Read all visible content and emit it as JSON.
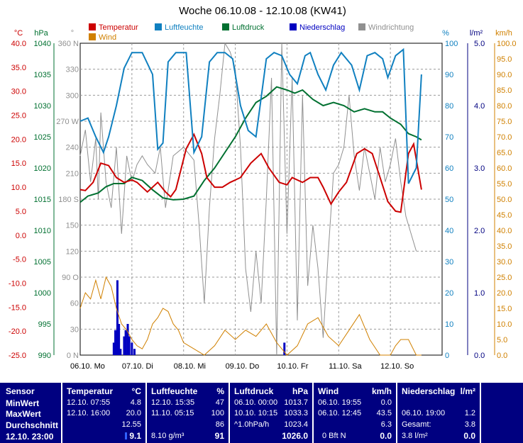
{
  "title": "Woche 06.10.08 - 12.10.08 (KW41)",
  "colors": {
    "temperature": "#cc0000",
    "humidity": "#1080c0",
    "pressure": "#007030",
    "rain": "#0000c0",
    "wind_dir": "#909090",
    "wind": "#d08000",
    "stats_bg": "#000080"
  },
  "legend": [
    {
      "label": "Temperatur",
      "color": "#cc0000"
    },
    {
      "label": "Luftfeuchte",
      "color": "#1080c0"
    },
    {
      "label": "Luftdruck",
      "color": "#007030"
    },
    {
      "label": "Niederschlag",
      "color": "#0000c0"
    },
    {
      "label": "Windrichtung",
      "color": "#909090"
    },
    {
      "label": "Wind",
      "color": "#d08000"
    }
  ],
  "axes": {
    "temp": {
      "unit": "°C",
      "min": -25,
      "max": 40,
      "ticks": [
        "40.0",
        "35.0",
        "30.0",
        "25.0",
        "20.0",
        "15.0",
        "10.0",
        "5.0",
        "0.0",
        "-5.0",
        "-10.0",
        "-15.0",
        "-20.0",
        "-25.0"
      ]
    },
    "pressure": {
      "unit": "hPa",
      "min": 990,
      "max": 1040,
      "ticks": [
        "1040",
        "1035",
        "1030",
        "1025",
        "1020",
        "1015",
        "1010",
        "1005",
        "1000",
        "995",
        "990"
      ]
    },
    "direction": {
      "unit": "°",
      "min": 0,
      "max": 360,
      "ticks": [
        "360 N",
        "330",
        "300",
        "270 W",
        "240",
        "210",
        "180 S",
        "150",
        "120",
        "90 O",
        "60",
        "30",
        "0 N"
      ]
    },
    "humidity": {
      "unit": "%",
      "min": 0,
      "max": 100,
      "ticks": [
        "100",
        "90",
        "80",
        "70",
        "60",
        "50",
        "40",
        "30",
        "20",
        "10",
        "0"
      ]
    },
    "rain": {
      "unit": "l/m²",
      "min": 0,
      "max": 5,
      "ticks": [
        "5.0",
        "4.0",
        "3.0",
        "2.0",
        "1.0",
        "0.0"
      ]
    },
    "wind": {
      "unit": "km/h",
      "min": 0,
      "max": 100,
      "ticks": [
        "100.0",
        "95.0",
        "90.0",
        "85.0",
        "80.0",
        "75.0",
        "70.0",
        "65.0",
        "60.0",
        "55.0",
        "50.0",
        "45.0",
        "40.0",
        "35.0",
        "30.0",
        "25.0",
        "20.0",
        "15.0",
        "10.0",
        "5.0",
        "0.0"
      ]
    }
  },
  "chart_data": {
    "type": "line",
    "title": "Woche 06.10.08 - 12.10.08 (KW41)",
    "categories": [
      "06.10. Mo",
      "07.10. Di",
      "08.10. Mi",
      "09.10. Do",
      "10.10. Fr",
      "11.10. Sa",
      "12.10. So"
    ],
    "grid": true,
    "legend_position": "top",
    "series": [
      {
        "name": "Temperatur",
        "axis": "temp",
        "color": "#cc0000",
        "x": [
          0,
          0.1,
          0.25,
          0.4,
          0.55,
          0.7,
          0.85,
          1.0,
          1.1,
          1.3,
          1.5,
          1.65,
          1.75,
          1.85,
          2.05,
          2.2,
          2.35,
          2.45,
          2.6,
          2.75,
          2.9,
          3.1,
          3.3,
          3.5,
          3.65,
          3.85,
          4.0,
          4.1,
          4.3,
          4.45,
          4.6,
          4.7,
          4.85,
          5.0,
          5.15,
          5.35,
          5.5,
          5.65,
          5.8,
          5.95,
          6.1,
          6.2,
          6.35,
          6.45,
          6.6
        ],
        "values": [
          9.5,
          9.3,
          11,
          15,
          14.5,
          12,
          11,
          11.5,
          11,
          9,
          11,
          9,
          8,
          9.5,
          18,
          21,
          17,
          12,
          10,
          10,
          11,
          12,
          15,
          17,
          14,
          11,
          10.5,
          12,
          11,
          12,
          12,
          10,
          6.5,
          9,
          11,
          17,
          18,
          17,
          12,
          7,
          5,
          4.8,
          17,
          19,
          9.5
        ]
      },
      {
        "name": "Luftfeuchte",
        "axis": "humidity",
        "color": "#1080c0",
        "x": [
          0,
          0.15,
          0.3,
          0.45,
          0.55,
          0.7,
          0.85,
          1.0,
          1.2,
          1.4,
          1.5,
          1.6,
          1.7,
          1.85,
          2.05,
          2.2,
          2.35,
          2.5,
          2.65,
          2.8,
          2.95,
          3.1,
          3.25,
          3.4,
          3.6,
          3.75,
          3.9,
          4.05,
          4.2,
          4.35,
          4.45,
          4.6,
          4.75,
          4.9,
          5.05,
          5.25,
          5.4,
          5.55,
          5.7,
          5.85,
          5.95,
          6.1,
          6.25,
          6.35,
          6.5,
          6.6
        ],
        "values": [
          75,
          76,
          70,
          65,
          70,
          80,
          92,
          97,
          97,
          90,
          66,
          68,
          94,
          97,
          97,
          65,
          70,
          94,
          97,
          97,
          95,
          80,
          72,
          70,
          95,
          97,
          96,
          90,
          87,
          96,
          97,
          90,
          85,
          93,
          97,
          93,
          85,
          96,
          97,
          95,
          89,
          96,
          98,
          55,
          60,
          90
        ]
      },
      {
        "name": "Luftdruck",
        "axis": "pressure",
        "color": "#007030",
        "x": [
          0,
          0.15,
          0.35,
          0.5,
          0.65,
          0.85,
          1.0,
          1.2,
          1.4,
          1.6,
          1.8,
          2.0,
          2.2,
          2.4,
          2.6,
          2.8,
          3.0,
          3.2,
          3.4,
          3.6,
          3.8,
          4.0,
          4.15,
          4.3,
          4.5,
          4.7,
          4.9,
          5.1,
          5.3,
          5.5,
          5.7,
          5.85,
          6.0,
          6.2,
          6.35,
          6.5,
          6.6
        ],
        "values": [
          1014.5,
          1015.5,
          1016,
          1017,
          1017.5,
          1017.5,
          1018.5,
          1018,
          1016.5,
          1015.2,
          1014.9,
          1015,
          1015.5,
          1018,
          1020,
          1022.5,
          1025,
          1028,
          1030.5,
          1031.5,
          1033,
          1032.5,
          1032,
          1032.5,
          1031,
          1030,
          1030.5,
          1030,
          1029,
          1029.5,
          1029,
          1029,
          1028,
          1027,
          1025.5,
          1025,
          1024.5
        ]
      },
      {
        "name": "Windrichtung",
        "axis": "direction",
        "color": "#909090",
        "x": [
          0,
          0.1,
          0.2,
          0.3,
          0.35,
          0.4,
          0.5,
          0.6,
          0.7,
          0.8,
          0.9,
          1.0,
          1.1,
          1.2,
          1.3,
          1.45,
          1.55,
          1.65,
          1.8,
          2.0,
          2.2,
          2.3,
          2.4,
          2.5,
          2.6,
          2.7,
          2.8,
          2.9,
          3.0,
          3.1,
          3.2,
          3.3,
          3.4,
          3.5,
          3.6,
          3.7,
          3.8,
          3.9,
          4.0,
          4.1,
          4.2,
          4.3,
          4.4,
          4.5,
          4.6,
          4.7,
          4.8,
          4.9,
          5.0,
          5.1,
          5.2,
          5.3,
          5.4,
          5.5,
          5.6,
          5.7,
          5.8,
          5.9,
          6.0,
          6.1,
          6.2,
          6.3,
          6.4,
          6.5
        ],
        "values": [
          230,
          260,
          200,
          250,
          180,
          280,
          200,
          170,
          240,
          140,
          230,
          200,
          220,
          230,
          220,
          210,
          240,
          170,
          230,
          240,
          225,
          150,
          60,
          170,
          250,
          300,
          360,
          350,
          330,
          240,
          100,
          50,
          120,
          60,
          180,
          320,
          0,
          360,
          140,
          320,
          40,
          300,
          80,
          150,
          100,
          20,
          120,
          210,
          220,
          240,
          300,
          230,
          190,
          240,
          210,
          180,
          240,
          200,
          220,
          250,
          200,
          160,
          140,
          120
        ]
      },
      {
        "name": "Wind",
        "axis": "wind",
        "color": "#d08000",
        "x": [
          0,
          0.1,
          0.2,
          0.3,
          0.4,
          0.5,
          0.6,
          0.7,
          0.8,
          0.9,
          1.0,
          1.1,
          1.2,
          1.3,
          1.4,
          1.5,
          1.6,
          1.7,
          1.8,
          1.9,
          2.0,
          2.2,
          2.4,
          2.6,
          2.8,
          3.0,
          3.2,
          3.4,
          3.6,
          3.8,
          4.0,
          4.2,
          4.4,
          4.6,
          4.8,
          5.0,
          5.2,
          5.4,
          5.6,
          5.8,
          6.0,
          6.1,
          6.2,
          6.35,
          6.5,
          6.6
        ],
        "values": [
          15,
          20,
          18,
          24,
          18,
          25,
          22,
          15,
          10,
          8,
          5,
          3,
          2,
          5,
          10,
          12,
          15,
          14,
          10,
          8,
          4,
          2,
          0,
          3,
          8,
          5,
          8,
          6,
          10,
          4,
          0,
          3,
          10,
          12,
          6,
          3,
          8,
          13,
          5,
          0,
          0,
          3,
          5,
          5,
          0,
          0
        ]
      }
    ],
    "rain_bars": {
      "name": "Niederschlag",
      "axis": "rain",
      "color": "#0000c0",
      "x": [
        0.65,
        0.68,
        0.72,
        0.75,
        0.78,
        0.85,
        0.88,
        0.92,
        0.95,
        1.0,
        1.05,
        3.95
      ],
      "values": [
        0.2,
        0.4,
        1.2,
        0.5,
        0.1,
        0.3,
        0.4,
        0.5,
        0.3,
        0.2,
        0.1,
        0.2
      ]
    }
  },
  "stats": {
    "headers": {
      "sensor": "Sensor",
      "temp": "Temperatur",
      "temp_unit": "°C",
      "hum": "Luftfeuchte",
      "hum_unit": "%",
      "press": "Luftdruck",
      "press_unit": "hPa",
      "wind": "Wind",
      "wind_unit": "km/h",
      "rain": "Niederschlag",
      "rain_unit": "l/m²"
    },
    "row_labels": [
      "MinWert",
      "MaxWert",
      "Durchschnitt",
      "12.10. 23:00"
    ],
    "temp": {
      "min_time": "12.10. 07:55",
      "min": "4.8",
      "max_time": "12.10. 16:00",
      "max": "20.0",
      "avg": "12.55",
      "cur": "9.1"
    },
    "hum": {
      "min_time": "12.10. 15:35",
      "min": "47",
      "max_time": "11.10. 05:15",
      "max": "100",
      "avg": "86",
      "abs": "8.10 g/m³",
      "cur": "91"
    },
    "press": {
      "min_time": "06.10. 00:00",
      "min": "1013.7",
      "max_time": "10.10. 10:15",
      "max": "1033.3",
      "trend": "^1.0hPa/h",
      "avg": "1023.4",
      "cur": "1026.0"
    },
    "wind": {
      "min_time": "06.10. 19:55",
      "min": "0.0",
      "max_time": "06.10. 12:45",
      "max": "43.5",
      "avg": "6.3",
      "bft": "0 Bft N",
      "cur": "0.0"
    },
    "rain": {
      "last_time": "06.10. 19:00",
      "last": "1.2",
      "total_label": "Gesamt:",
      "total": "3.8",
      "cur_label": "3.8 l/m²",
      "cur": "0.0"
    }
  }
}
